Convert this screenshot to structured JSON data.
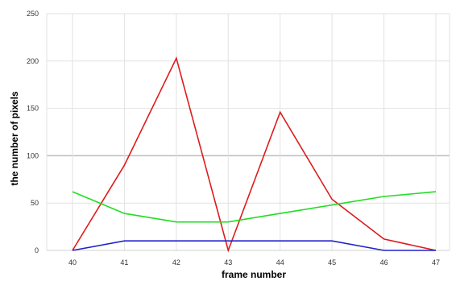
{
  "chart_data": {
    "type": "line",
    "title": "",
    "xlabel": "frame number",
    "ylabel": "the number of pixels",
    "x": [
      40,
      41,
      42,
      43,
      44,
      45,
      46,
      47
    ],
    "ylim": [
      0,
      250
    ],
    "yticks": [
      0,
      50,
      100,
      150,
      200,
      250
    ],
    "grid": true,
    "legend": "none",
    "series": [
      {
        "color": "#dd1c1c",
        "values": [
          0,
          90,
          203,
          0,
          146,
          54,
          12,
          0
        ]
      },
      {
        "color": "#22dd22",
        "values": [
          62,
          39,
          30,
          30,
          39,
          48,
          57,
          62
        ]
      },
      {
        "color": "#2222cc",
        "values": [
          0,
          10,
          10,
          10,
          10,
          10,
          0,
          0
        ]
      }
    ]
  }
}
